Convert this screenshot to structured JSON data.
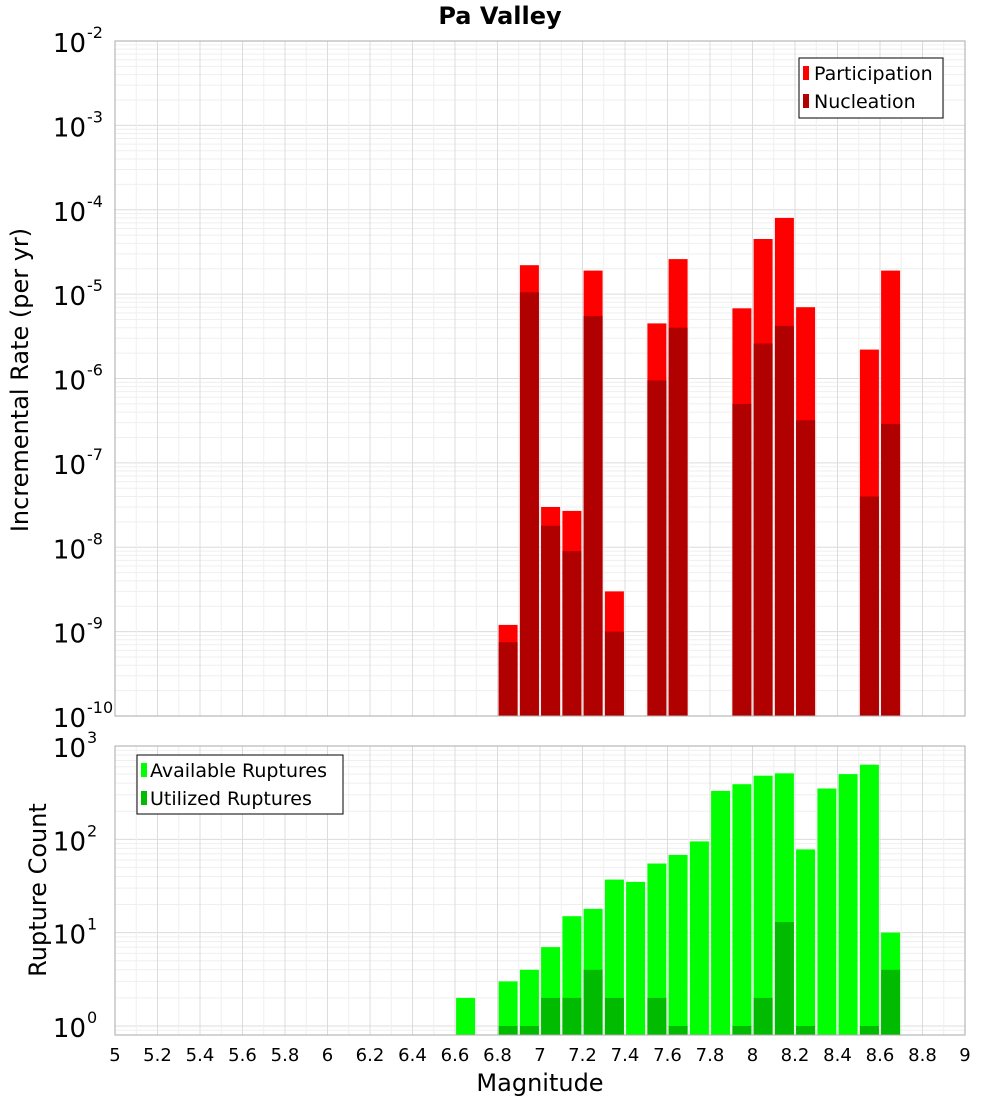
{
  "chart_data": [
    {
      "type": "bar",
      "title": "Pa Valley",
      "xlabel": "",
      "ylabel": "Incremental Rate (per yr)",
      "yscale": "log",
      "ylim": [
        1e-10,
        0.01
      ],
      "xlim": [
        5,
        9
      ],
      "grid": true,
      "legend_position": "top-right",
      "x": [
        6.85,
        6.95,
        7.05,
        7.15,
        7.25,
        7.35,
        7.55,
        7.65,
        7.95,
        8.05,
        8.15,
        8.25,
        8.55,
        8.65
      ],
      "series": [
        {
          "name": "Participation",
          "color": "#ff0000",
          "values": [
            1.2e-09,
            2.2e-05,
            3e-08,
            2.7e-08,
            1.9e-05,
            3e-09,
            4.5e-06,
            2.6e-05,
            6.8e-06,
            4.5e-05,
            8e-05,
            7e-06,
            2.2e-06,
            1.9e-05
          ]
        },
        {
          "name": "Nucleation",
          "color": "#b00000",
          "values": [
            7.5e-10,
            1.05e-05,
            1.8e-08,
            9e-09,
            5.5e-06,
            1e-09,
            9.5e-07,
            4e-06,
            5e-07,
            2.6e-06,
            4.2e-06,
            3.2e-07,
            4e-08,
            2.9e-07
          ]
        }
      ]
    },
    {
      "type": "bar",
      "title": "",
      "xlabel": "Magnitude",
      "ylabel": "Rupture Count",
      "yscale": "log",
      "ylim": [
        0.8,
        1000
      ],
      "xlim": [
        5,
        9
      ],
      "grid": true,
      "legend_position": "top-left",
      "x": [
        6.65,
        6.85,
        6.95,
        7.05,
        7.15,
        7.25,
        7.35,
        7.45,
        7.55,
        7.65,
        7.75,
        7.85,
        7.95,
        8.05,
        8.15,
        8.25,
        8.35,
        8.45,
        8.55,
        8.65
      ],
      "series": [
        {
          "name": "Available Ruptures",
          "color": "#00ff00",
          "values": [
            2,
            3,
            4,
            7,
            15,
            18,
            37,
            35,
            55,
            68,
            95,
            330,
            390,
            480,
            510,
            78,
            350,
            500,
            630,
            10
          ]
        },
        {
          "name": "Utilized Ruptures",
          "color": "#00bb00",
          "values": [
            null,
            1,
            1,
            2,
            2,
            4,
            2,
            null,
            2,
            1,
            null,
            null,
            1,
            2,
            13,
            1,
            null,
            null,
            1,
            4
          ]
        }
      ]
    }
  ],
  "x_ticks": [
    "5",
    "5.2",
    "5.4",
    "5.6",
    "5.8",
    "6",
    "6.2",
    "6.4",
    "6.6",
    "6.8",
    "7",
    "7.2",
    "7.4",
    "7.6",
    "7.8",
    "8",
    "8.2",
    "8.4",
    "8.6",
    "8.8",
    "9"
  ],
  "top_y_ticks": [
    {
      "base": "10",
      "exp": "-2"
    },
    {
      "base": "10",
      "exp": "-3"
    },
    {
      "base": "10",
      "exp": "-4"
    },
    {
      "base": "10",
      "exp": "-5"
    },
    {
      "base": "10",
      "exp": "-6"
    },
    {
      "base": "10",
      "exp": "-7"
    },
    {
      "base": "10",
      "exp": "-8"
    },
    {
      "base": "10",
      "exp": "-9"
    },
    {
      "base": "10",
      "exp": "-10"
    }
  ],
  "bottom_y_ticks": [
    {
      "base": "10",
      "exp": "3"
    },
    {
      "base": "10",
      "exp": "2"
    },
    {
      "base": "10",
      "exp": "1"
    },
    {
      "base": "10",
      "exp": "0"
    }
  ]
}
